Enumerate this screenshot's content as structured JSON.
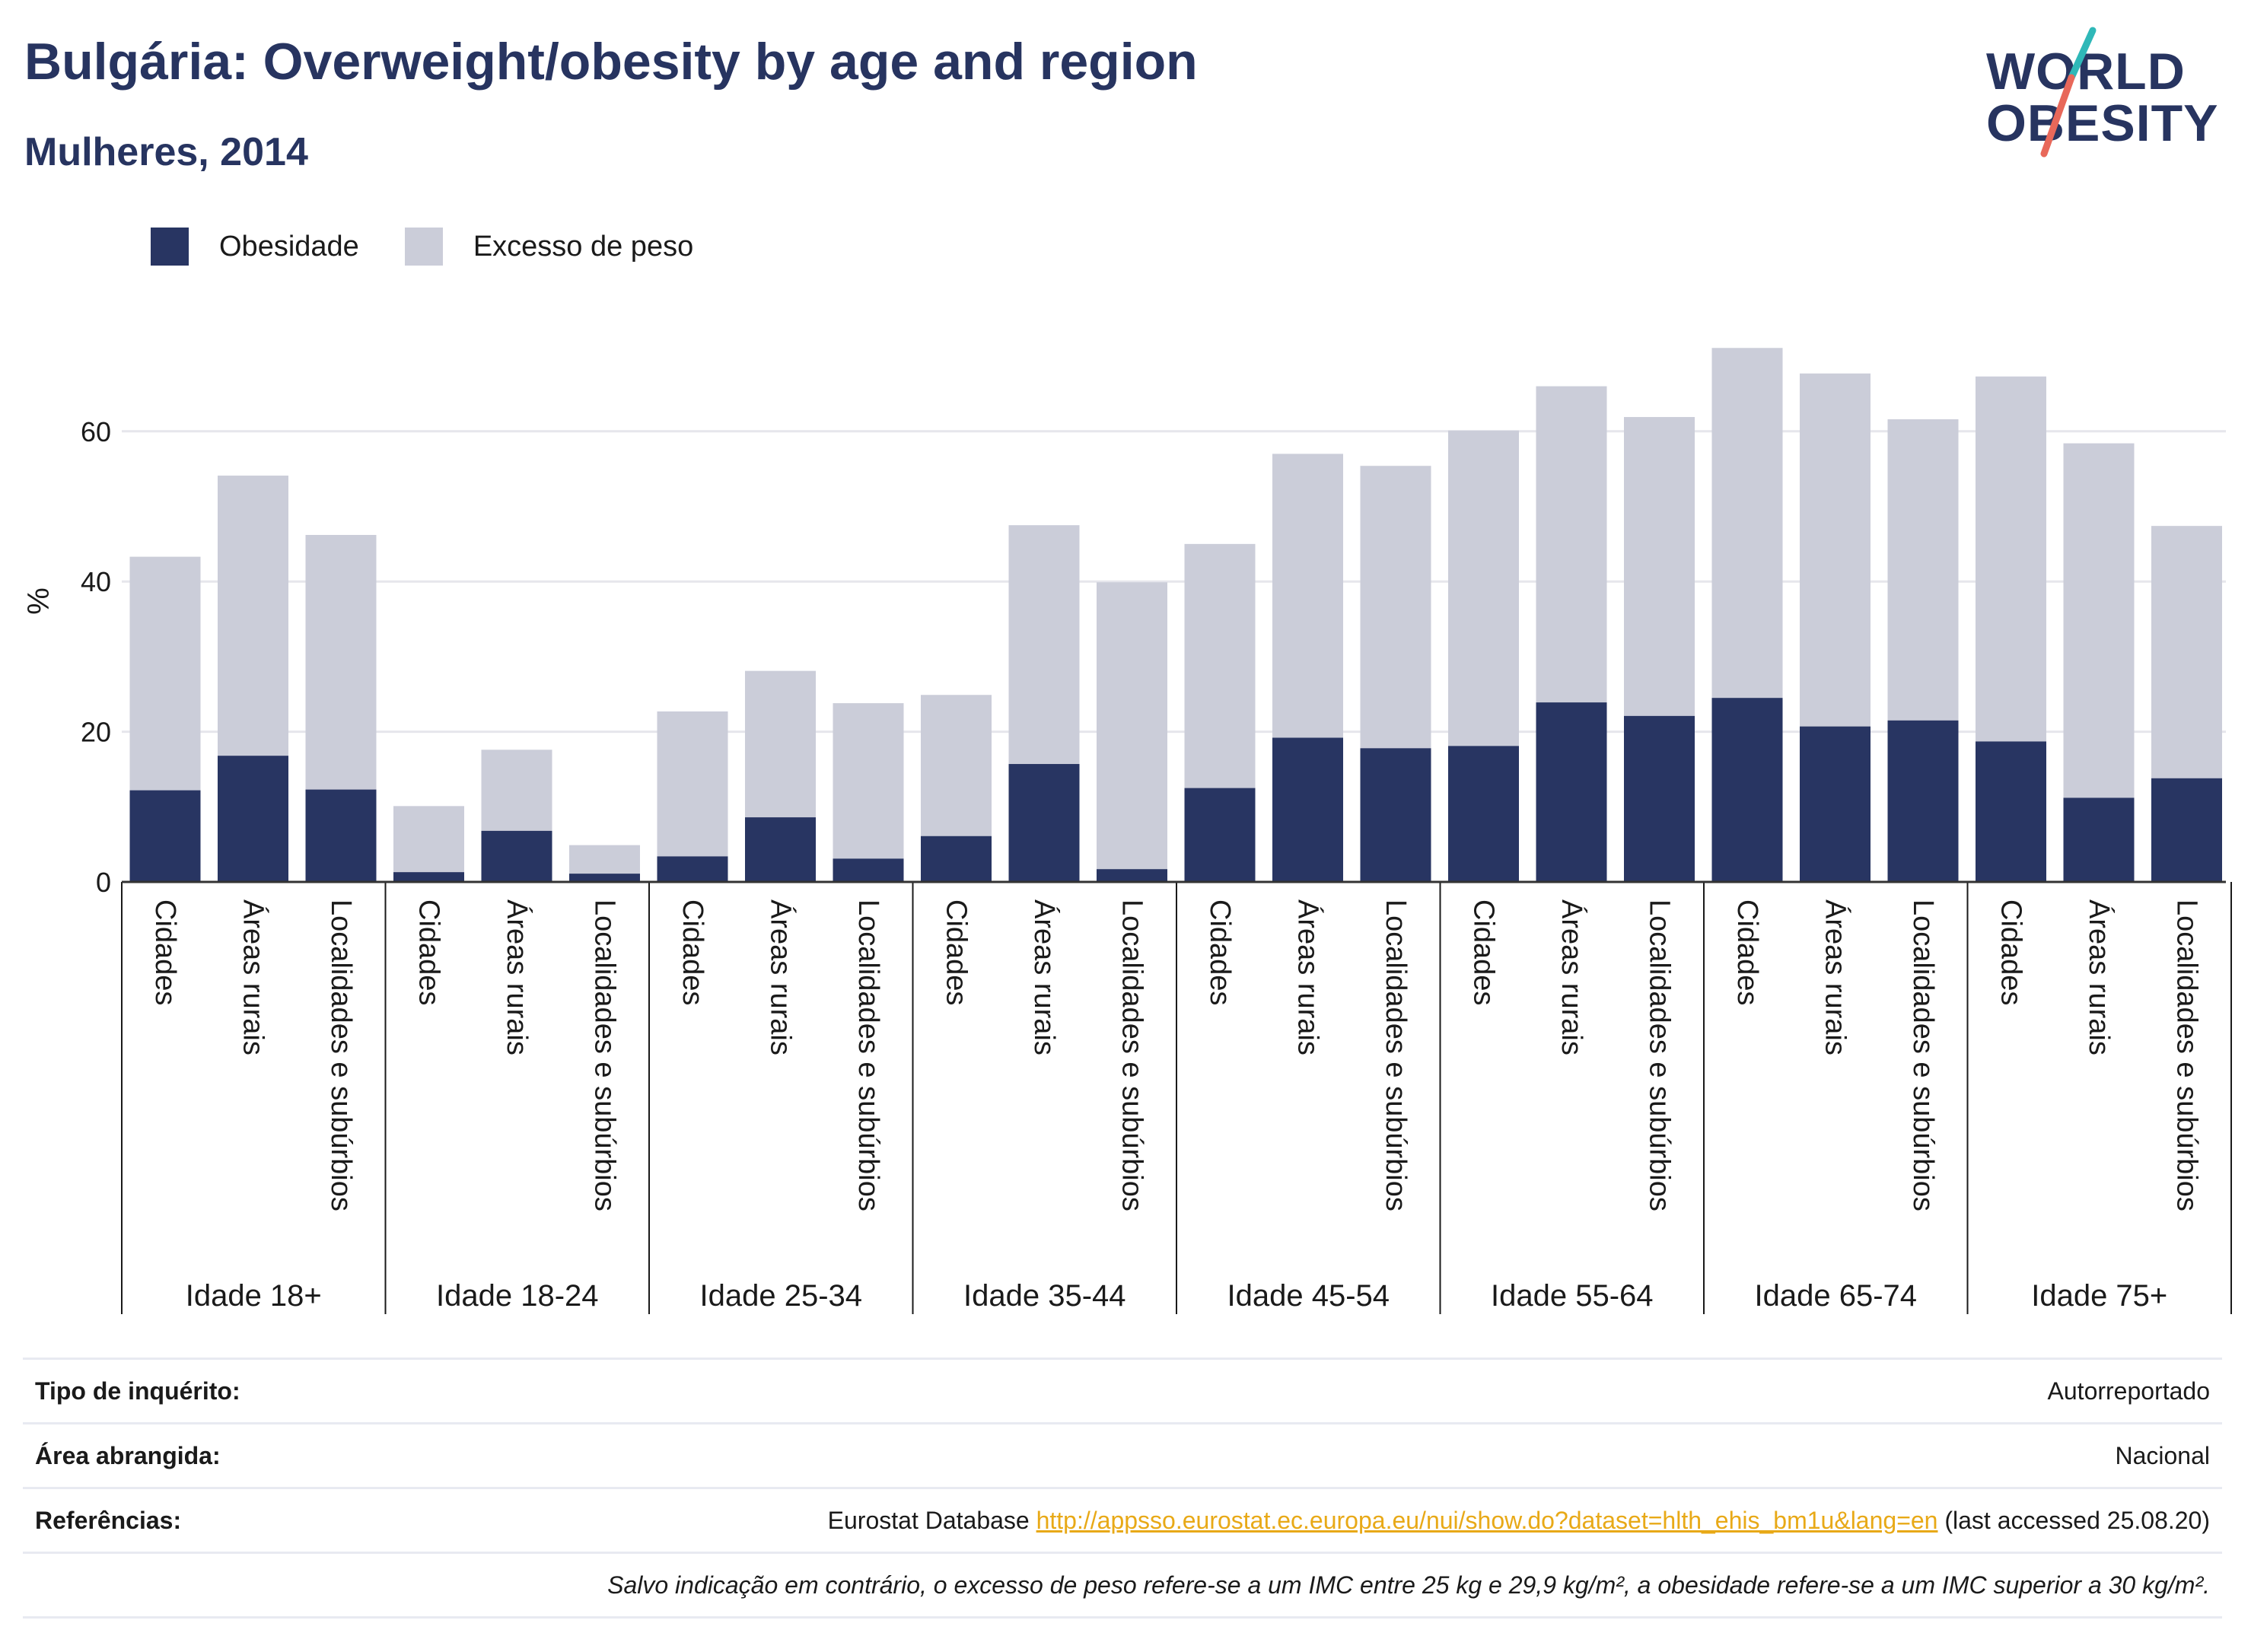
{
  "header": {
    "title": "Bulgária: Overweight/obesity by age and region",
    "subtitle": "Mulheres, 2014"
  },
  "logo": {
    "line1": "WORLD",
    "line2": "OBESITY",
    "colors": {
      "navy": "#273460",
      "teal": "#2fb8b8",
      "coral": "#e8685a"
    }
  },
  "legend": {
    "obesity_label": "Obesidade",
    "overweight_label": "Excesso de peso",
    "obesity_color": "#283562",
    "overweight_color": "#cbcdd9"
  },
  "chart_data": {
    "type": "bar",
    "stacking": "overlay",
    "ylabel": "%",
    "ylim": [
      0,
      75
    ],
    "yticks": [
      0,
      20,
      40,
      60
    ],
    "grid": true,
    "legend_position": "top-left",
    "groups": [
      {
        "label": "Idade 18+",
        "categories": [
          "Cidades",
          "Áreas rurais",
          "Localidades e subúrbios"
        ],
        "overweight": [
          43.3,
          54.1,
          46.2
        ],
        "obesity": [
          12.2,
          16.8,
          12.3
        ]
      },
      {
        "label": "Idade 18-24",
        "categories": [
          "Cidades",
          "Áreas rurais",
          "Localidades e subúrbios"
        ],
        "overweight": [
          10.1,
          17.6,
          4.9
        ],
        "obesity": [
          1.3,
          6.8,
          1.1
        ]
      },
      {
        "label": "Idade 25-34",
        "categories": [
          "Cidades",
          "Áreas rurais",
          "Localidades e subúrbios"
        ],
        "overweight": [
          22.7,
          28.1,
          23.8
        ],
        "obesity": [
          3.4,
          8.6,
          3.1
        ]
      },
      {
        "label": "Idade 35-44",
        "categories": [
          "Cidades",
          "Áreas rurais",
          "Localidades e subúrbios"
        ],
        "overweight": [
          24.9,
          47.5,
          39.9
        ],
        "obesity": [
          6.1,
          15.7,
          1.7
        ]
      },
      {
        "label": "Idade 45-54",
        "categories": [
          "Cidades",
          "Áreas rurais",
          "Localidades e subúrbios"
        ],
        "overweight": [
          45.0,
          57.0,
          55.4
        ],
        "obesity": [
          12.5,
          19.2,
          17.8
        ]
      },
      {
        "label": "Idade 55-64",
        "categories": [
          "Cidades",
          "Áreas rurais",
          "Localidades e subúrbios"
        ],
        "overweight": [
          60.1,
          66.0,
          61.9
        ],
        "obesity": [
          18.1,
          23.9,
          22.1
        ]
      },
      {
        "label": "Idade 65-74",
        "categories": [
          "Cidades",
          "Áreas rurais",
          "Localidades e subúrbios"
        ],
        "overweight": [
          71.1,
          67.7,
          61.6
        ],
        "obesity": [
          24.5,
          20.7,
          21.5
        ]
      },
      {
        "label": "Idade 75+",
        "categories": [
          "Cidades",
          "Áreas rurais",
          "Localidades e subúrbios"
        ],
        "overweight": [
          67.3,
          58.4,
          47.4
        ],
        "obesity": [
          18.7,
          11.2,
          13.8
        ]
      }
    ]
  },
  "info": {
    "survey_key": "Tipo de inquérito:",
    "survey_val": "Autorreportado",
    "area_key": "Área abrangida:",
    "area_val": "Nacional",
    "ref_key": "Referências:",
    "ref_prefix": "Eurostat Database ",
    "ref_link": "http://appsso.eurostat.ec.europa.eu/nui/show.do?dataset=hlth_ehis_bm1u&lang=en",
    "ref_suffix": " (last accessed 25.08.20)",
    "note": "Salvo indicação em contrário, o excesso de peso refere-se a um IMC entre 25 kg e 29,9 kg/m², a obesidade refere-se a um IMC superior a 30 kg/m²."
  }
}
